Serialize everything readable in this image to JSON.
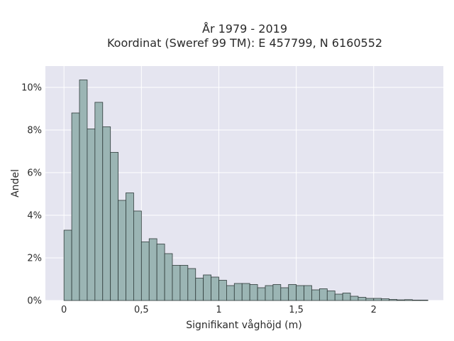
{
  "chart_data": {
    "type": "bar",
    "title_line1": "År 1979 - 2019",
    "title_line2": "Koordinat (Sweref 99 TM): E 457799, N 6160552",
    "xlabel": "Signifikant våghöjd (m)",
    "ylabel": "Andel",
    "xlim": [
      -0.12,
      2.45
    ],
    "ylim": [
      0,
      11
    ],
    "grid": true,
    "bin_width": 0.05,
    "bin_start": 0.0,
    "values": [
      3.3,
      8.8,
      10.35,
      8.05,
      9.3,
      8.15,
      6.95,
      4.7,
      5.05,
      4.2,
      2.75,
      2.9,
      2.65,
      2.2,
      1.65,
      1.65,
      1.5,
      1.05,
      1.2,
      1.1,
      0.95,
      0.7,
      0.8,
      0.8,
      0.75,
      0.6,
      0.7,
      0.75,
      0.6,
      0.75,
      0.7,
      0.7,
      0.5,
      0.55,
      0.45,
      0.3,
      0.35,
      0.2,
      0.15,
      0.1,
      0.1,
      0.08,
      0.05,
      0.03,
      0.04,
      0.02,
      0.02
    ],
    "x_ticks": [
      {
        "value": 0,
        "label": "0"
      },
      {
        "value": 0.5,
        "label": "0,5"
      },
      {
        "value": 1,
        "label": "1"
      },
      {
        "value": 1.5,
        "label": "1,5"
      },
      {
        "value": 2,
        "label": "2"
      }
    ],
    "y_ticks": [
      {
        "value": 0,
        "label": "0%"
      },
      {
        "value": 2,
        "label": "2%"
      },
      {
        "value": 4,
        "label": "4%"
      },
      {
        "value": 6,
        "label": "6%"
      },
      {
        "value": 8,
        "label": "8%"
      },
      {
        "value": 10,
        "label": "10%"
      }
    ],
    "colors": {
      "plot_bg": "#e5e5f0",
      "bar_fill": "#9bb5b4",
      "bar_stroke": "#2f3b3a",
      "grid": "#ffffff"
    }
  }
}
